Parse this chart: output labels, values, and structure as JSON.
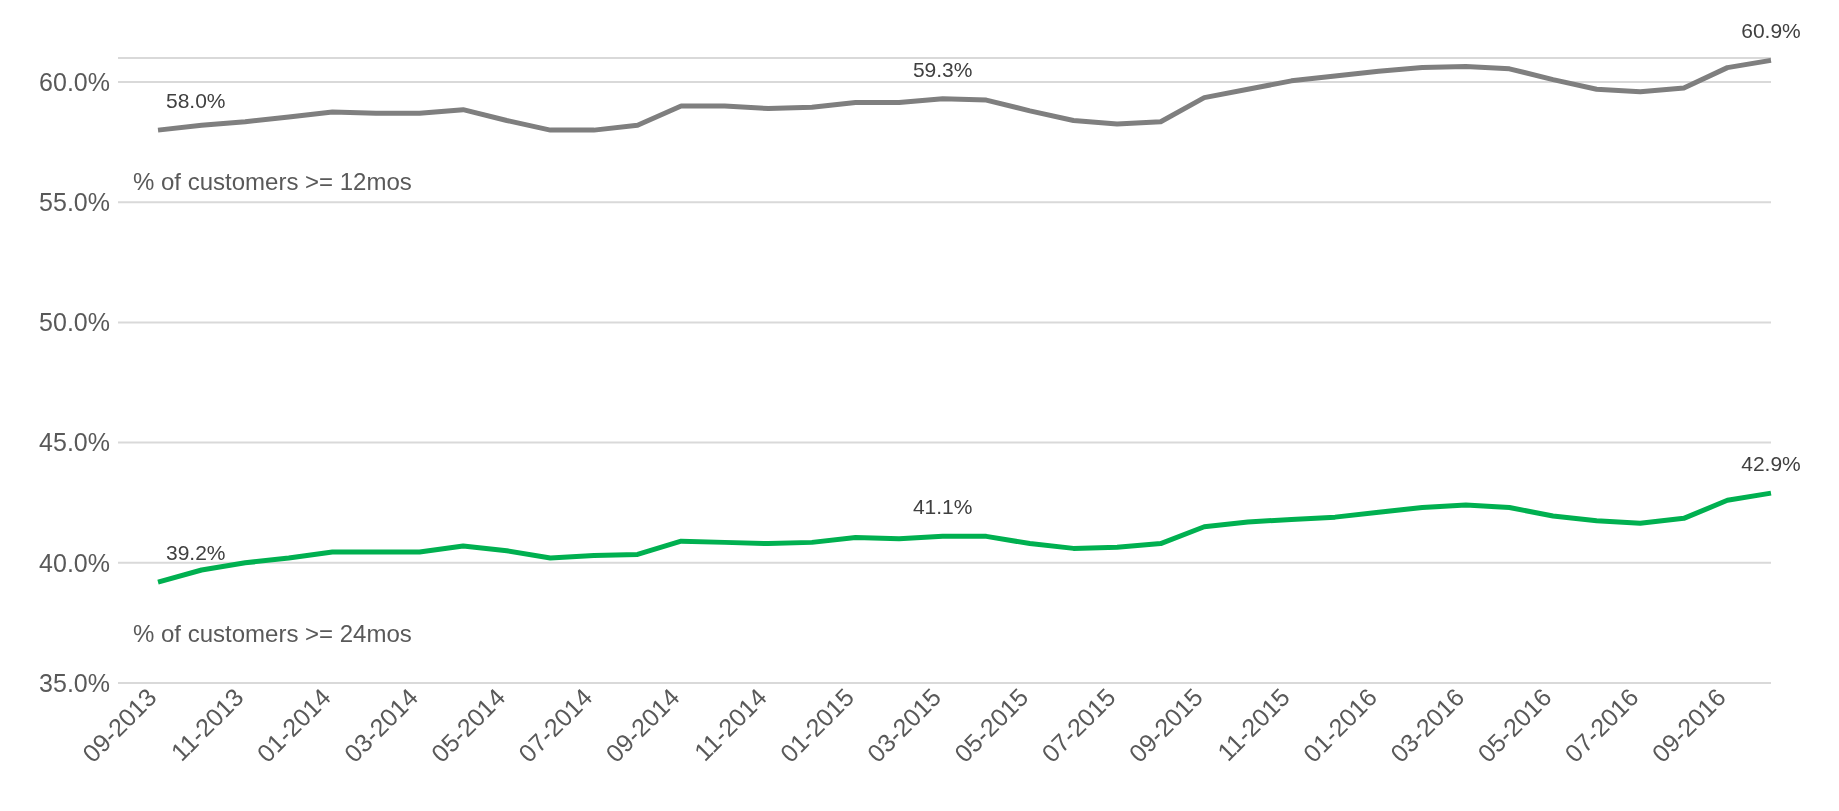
{
  "chart_data": {
    "type": "line",
    "categories": [
      "09-2013",
      null,
      "11-2013",
      null,
      "01-2014",
      null,
      "03-2014",
      null,
      "05-2014",
      null,
      "07-2014",
      null,
      "09-2014",
      null,
      "11-2014",
      null,
      "01-2015",
      null,
      "03-2015",
      null,
      "05-2015",
      null,
      "07-2015",
      null,
      "09-2015",
      null,
      "11-2015",
      null,
      "01-2016",
      null,
      "03-2016",
      null,
      "05-2016",
      null,
      "07-2016",
      null,
      "09-2016",
      null
    ],
    "series": [
      {
        "name": "% of customers >= 12mos",
        "color": "#7f7f7f",
        "values": [
          58.0,
          58.2,
          58.35,
          58.55,
          58.75,
          58.7,
          58.7,
          58.85,
          58.4,
          58.0,
          58.0,
          58.2,
          59.0,
          59.0,
          58.9,
          58.95,
          59.15,
          59.15,
          59.3,
          59.25,
          58.8,
          58.4,
          58.25,
          58.35,
          59.35,
          59.7,
          60.05,
          60.25,
          60.45,
          60.6,
          60.65,
          60.55,
          60.1,
          59.7,
          59.6,
          59.75,
          60.6,
          60.9
        ],
        "value_labels": [
          "58.0%",
          null,
          null,
          null,
          null,
          null,
          null,
          null,
          null,
          null,
          null,
          null,
          null,
          null,
          null,
          null,
          null,
          null,
          "59.3%",
          null,
          null,
          null,
          null,
          null,
          null,
          null,
          null,
          null,
          null,
          null,
          null,
          null,
          null,
          null,
          null,
          null,
          null,
          "60.9%"
        ]
      },
      {
        "name": "% of customers >= 24mos",
        "color": "#00b050",
        "values": [
          39.2,
          39.7,
          40.0,
          40.2,
          40.45,
          40.45,
          40.45,
          40.7,
          40.5,
          40.2,
          40.3,
          40.35,
          40.9,
          40.85,
          40.8,
          40.85,
          41.05,
          41.0,
          41.1,
          41.1,
          40.8,
          40.6,
          40.65,
          40.8,
          41.5,
          41.7,
          41.8,
          41.9,
          42.1,
          42.3,
          42.4,
          42.3,
          41.95,
          41.75,
          41.65,
          41.85,
          42.6,
          42.9
        ],
        "value_labels": [
          "39.2%",
          null,
          null,
          null,
          null,
          null,
          null,
          null,
          null,
          null,
          null,
          null,
          null,
          null,
          null,
          null,
          null,
          null,
          "41.1%",
          null,
          null,
          null,
          null,
          null,
          null,
          null,
          null,
          null,
          null,
          null,
          null,
          null,
          null,
          null,
          null,
          null,
          null,
          "42.9%"
        ]
      }
    ],
    "ylim": [
      35,
      61
    ],
    "yticks": [
      {
        "value": 35,
        "label": "35.0%"
      },
      {
        "value": 40,
        "label": "40.0%"
      },
      {
        "value": 45,
        "label": "45.0%"
      },
      {
        "value": 50,
        "label": "50.0%"
      },
      {
        "value": 55,
        "label": "55.0%"
      },
      {
        "value": 60,
        "label": "60.0%"
      }
    ],
    "grid": "y",
    "marker": "none",
    "line_style": "solid"
  }
}
